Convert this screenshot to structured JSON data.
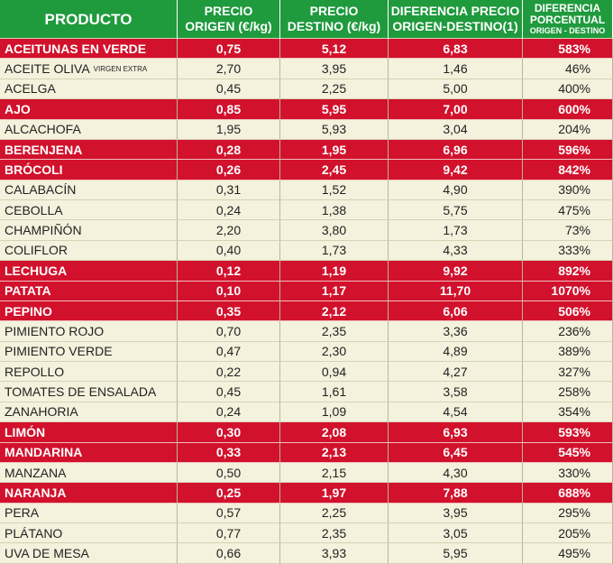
{
  "table": {
    "header": [
      [
        "PRODUCTO"
      ],
      [
        "PRECIO",
        "ORIGEN (€/kg)"
      ],
      [
        "PRECIO",
        "DESTINO (€/kg)"
      ],
      [
        "DIFERENCIA PRECIO",
        "ORIGEN-DESTINO(1)"
      ],
      [
        "DIFERENCIA",
        "PORCENTUAL",
        "ORIGEN - DESTINO"
      ]
    ],
    "rows": [
      {
        "cells": [
          "ACEITUNAS EN VERDE",
          "0,75",
          "5,12",
          "6,83",
          "583%"
        ],
        "highlight": true
      },
      {
        "cells": [
          "ACEITE OLIVA",
          "2,70",
          "3,95",
          "1,46",
          "46%"
        ],
        "note": "VIRGEN EXTRA",
        "highlight": false
      },
      {
        "cells": [
          "ACELGA",
          "0,45",
          "2,25",
          "5,00",
          "400%"
        ],
        "highlight": false
      },
      {
        "cells": [
          "AJO",
          "0,85",
          "5,95",
          "7,00",
          "600%"
        ],
        "highlight": true
      },
      {
        "cells": [
          "ALCACHOFA",
          "1,95",
          "5,93",
          "3,04",
          "204%"
        ],
        "highlight": false
      },
      {
        "cells": [
          "BERENJENA",
          "0,28",
          "1,95",
          "6,96",
          "596%"
        ],
        "highlight": true
      },
      {
        "cells": [
          "BRÓCOLI",
          "0,26",
          "2,45",
          "9,42",
          "842%"
        ],
        "highlight": true
      },
      {
        "cells": [
          "CALABACÍN",
          "0,31",
          "1,52",
          "4,90",
          "390%"
        ],
        "highlight": false
      },
      {
        "cells": [
          "CEBOLLA",
          "0,24",
          "1,38",
          "5,75",
          "475%"
        ],
        "highlight": false
      },
      {
        "cells": [
          "CHAMPIÑÓN",
          "2,20",
          "3,80",
          "1,73",
          "73%"
        ],
        "highlight": false
      },
      {
        "cells": [
          "COLIFLOR",
          "0,40",
          "1,73",
          "4,33",
          "333%"
        ],
        "highlight": false
      },
      {
        "cells": [
          "LECHUGA",
          "0,12",
          "1,19",
          "9,92",
          "892%"
        ],
        "highlight": true
      },
      {
        "cells": [
          "PATATA",
          "0,10",
          "1,17",
          "11,70",
          "1070%"
        ],
        "highlight": true
      },
      {
        "cells": [
          "PEPINO",
          "0,35",
          "2,12",
          "6,06",
          "506%"
        ],
        "highlight": true
      },
      {
        "cells": [
          "PIMIENTO ROJO",
          "0,70",
          "2,35",
          "3,36",
          "236%"
        ],
        "highlight": false
      },
      {
        "cells": [
          "PIMIENTO VERDE",
          "0,47",
          "2,30",
          "4,89",
          "389%"
        ],
        "highlight": false
      },
      {
        "cells": [
          "REPOLLO",
          "0,22",
          "0,94",
          "4,27",
          "327%"
        ],
        "highlight": false
      },
      {
        "cells": [
          "TOMATES DE ENSALADA",
          "0,45",
          "1,61",
          "3,58",
          "258%"
        ],
        "highlight": false
      },
      {
        "cells": [
          "ZANAHORIA",
          "0,24",
          "1,09",
          "4,54",
          "354%"
        ],
        "highlight": false
      },
      {
        "cells": [
          "LIMÓN",
          "0,30",
          "2,08",
          "6,93",
          "593%"
        ],
        "highlight": true
      },
      {
        "cells": [
          "MANDARINA",
          "0,33",
          "2,13",
          "6,45",
          "545%"
        ],
        "highlight": true
      },
      {
        "cells": [
          "MANZANA",
          "0,50",
          "2,15",
          "4,30",
          "330%"
        ],
        "highlight": false
      },
      {
        "cells": [
          "NARANJA",
          "0,25",
          "1,97",
          "7,88",
          "688%"
        ],
        "highlight": true
      },
      {
        "cells": [
          "PERA",
          "0,57",
          "2,25",
          "3,95",
          "295%"
        ],
        "highlight": false
      },
      {
        "cells": [
          "PLÁTANO",
          "0,77",
          "2,35",
          "3,05",
          "205%"
        ],
        "highlight": false
      },
      {
        "cells": [
          "UVA DE MESA",
          "0,66",
          "3,93",
          "5,95",
          "495%"
        ],
        "highlight": false
      }
    ]
  }
}
